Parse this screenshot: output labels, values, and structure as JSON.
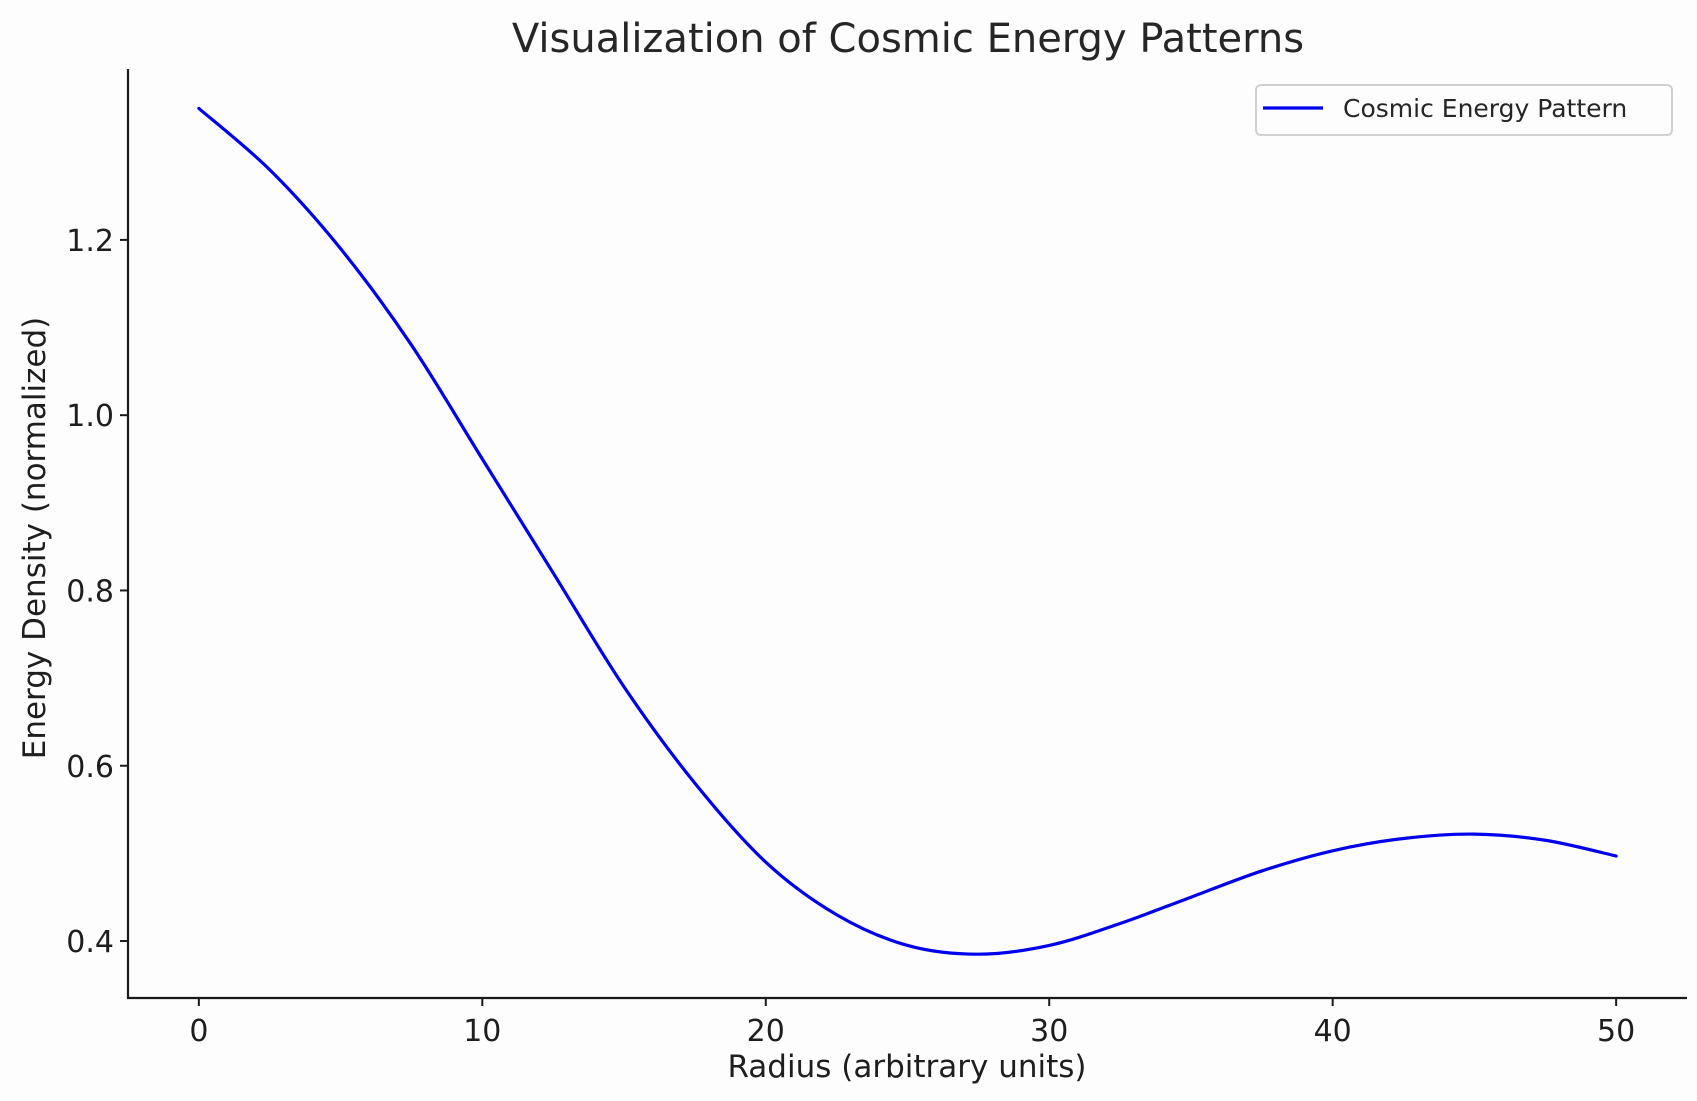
{
  "chart_data": {
    "type": "line",
    "title": "Visualization of Cosmic Energy Patterns",
    "xlabel": "Radius (arbitrary units)",
    "ylabel": "Energy Density (normalized)",
    "xlim": [
      -2.5,
      52.5
    ],
    "ylim": [
      0.335,
      1.395
    ],
    "xticks": [
      0,
      10,
      20,
      30,
      40,
      50
    ],
    "xtick_labels": [
      "0",
      "10",
      "20",
      "30",
      "40",
      "50"
    ],
    "yticks": [
      0.4,
      0.6,
      0.8,
      1.0,
      1.2
    ],
    "ytick_labels": [
      "0.4",
      "0.6",
      "0.8",
      "1.0",
      "1.2"
    ],
    "grid": false,
    "legend": {
      "position": "top-right",
      "entries": [
        "Cosmic Energy Pattern"
      ]
    },
    "series": [
      {
        "name": "Cosmic Energy Pattern",
        "color": "#0000ee",
        "x": [
          0,
          2.5,
          5,
          7.5,
          10,
          12.5,
          15,
          17.5,
          20,
          22.5,
          25,
          27.5,
          30,
          32.5,
          35,
          37.5,
          40,
          42.5,
          45,
          47.5,
          50
        ],
        "y": [
          1.35,
          1.28,
          1.19,
          1.08,
          0.95,
          0.82,
          0.69,
          0.58,
          0.49,
          0.43,
          0.395,
          0.385,
          0.395,
          0.42,
          0.45,
          0.48,
          0.503,
          0.517,
          0.522,
          0.515,
          0.497
        ]
      }
    ]
  }
}
